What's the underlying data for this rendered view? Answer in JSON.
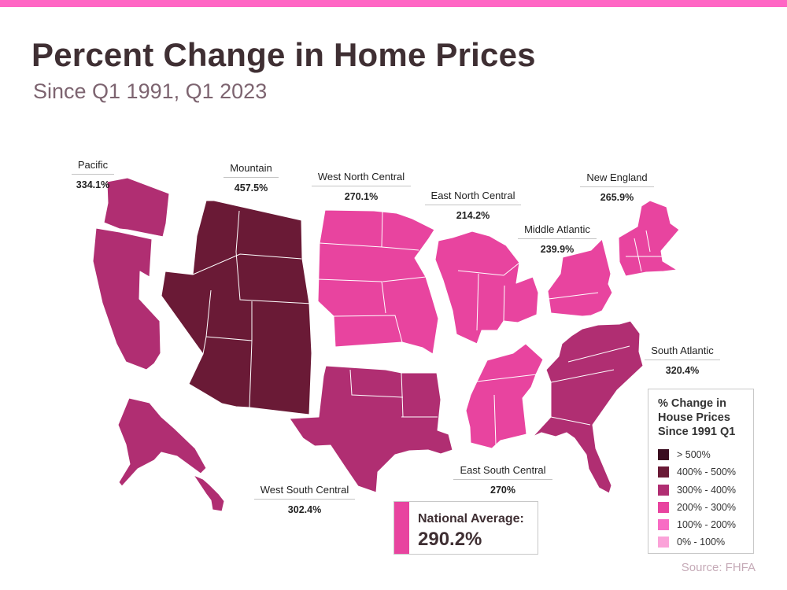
{
  "title": "Percent Change in Home Prices",
  "subtitle": "Since Q1 1991, Q1 2023",
  "source": "Source: FHFA",
  "national": {
    "label": "National Average:",
    "value": "290.2%"
  },
  "legend": {
    "title": "% Change in House Prices Since 1991 Q1",
    "items": [
      {
        "label": "> 500%",
        "color": "#3b0d20"
      },
      {
        "label": "400% - 500%",
        "color": "#6a1a36"
      },
      {
        "label": "300% - 400%",
        "color": "#b02e72"
      },
      {
        "label": "200% - 300%",
        "color": "#e8449f"
      },
      {
        "label": "100% - 200%",
        "color": "#f86cc4"
      },
      {
        "label": "0% - 100%",
        "color": "#fba3d9"
      }
    ]
  },
  "regions": [
    {
      "name": "Pacific",
      "value": "334.1%",
      "color": "#b02e72"
    },
    {
      "name": "Mountain",
      "value": "457.5%",
      "color": "#6a1a36"
    },
    {
      "name": "West North Central",
      "value": "270.1%",
      "color": "#e8449f"
    },
    {
      "name": "East North Central",
      "value": "214.2%",
      "color": "#e8449f"
    },
    {
      "name": "Middle Atlantic",
      "value": "239.9%",
      "color": "#e8449f"
    },
    {
      "name": "New England",
      "value": "265.9%",
      "color": "#e8449f"
    },
    {
      "name": "South Atlantic",
      "value": "320.4%",
      "color": "#b02e72"
    },
    {
      "name": "East South Central",
      "value": "270%",
      "color": "#e8449f"
    },
    {
      "name": "West South Central",
      "value": "302.4%",
      "color": "#b02e72"
    }
  ]
}
